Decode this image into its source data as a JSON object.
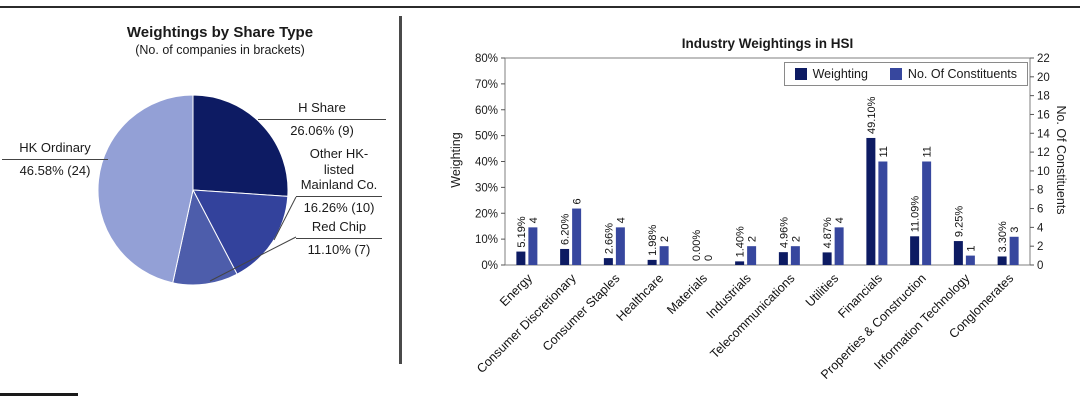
{
  "chart_data": [
    {
      "type": "pie",
      "title": "Weightings by Share Type",
      "subtitle": "(No. of companies in brackets)",
      "slices": [
        {
          "label": "H Share",
          "value": 26.06,
          "count": 9,
          "value_label": "26.06% (9)",
          "color": "#0d1b63"
        },
        {
          "label": "Other HK-listed Mainland Co.",
          "value": 16.26,
          "count": 10,
          "value_label": "16.26% (10)",
          "color": "#33429c"
        },
        {
          "label": "Red Chip",
          "value": 11.1,
          "count": 7,
          "value_label": "11.10% (7)",
          "color": "#4d5dab"
        },
        {
          "label": "HK Ordinary",
          "value": 46.58,
          "count": 24,
          "value_label": "46.58% (24)",
          "color": "#93a0d6"
        }
      ]
    },
    {
      "type": "bar",
      "title": "Industry Weightings in HSI",
      "legend": [
        "Weighting",
        "No. Of Constituents"
      ],
      "colors": {
        "weighting": "#0d1b63",
        "constituents": "#37479e"
      },
      "categories": [
        "Energy",
        "Consumer Discretionary",
        "Consumer Staples",
        "Healthcare",
        "Materials",
        "Industrials",
        "Telecommunications",
        "Utilities",
        "Financials",
        "Properties & Construction",
        "Information Technology",
        "Conglomerates"
      ],
      "series": [
        {
          "name": "Weighting",
          "axis": "left",
          "values": [
            5.19,
            6.2,
            2.66,
            1.98,
            0.0,
            1.4,
            4.96,
            4.87,
            49.1,
            11.09,
            9.25,
            3.3
          ],
          "labels": [
            "5.19%",
            "6.20%",
            "2.66%",
            "1.98%",
            "0.00%",
            "1.40%",
            "4.96%",
            "4.87%",
            "49.10%",
            "11.09%",
            "9.25%",
            "3.30%"
          ]
        },
        {
          "name": "No. Of Constituents",
          "axis": "right",
          "values": [
            4,
            6,
            4,
            2,
            0,
            2,
            2,
            4,
            11,
            11,
            1,
            3
          ],
          "labels": [
            "4",
            "6",
            "4",
            "2",
            "0",
            "2",
            "2",
            "4",
            "11",
            "11",
            "1",
            "3"
          ]
        }
      ],
      "ylabel_left": "Weighting",
      "ylabel_right": "No. Of Constituents",
      "ylim_left": [
        0,
        80
      ],
      "ylim_right": [
        0,
        22
      ],
      "yticks_left": [
        "0%",
        "10%",
        "20%",
        "30%",
        "40%",
        "50%",
        "60%",
        "70%",
        "80%"
      ],
      "yticks_right": [
        "0",
        "2",
        "4",
        "6",
        "8",
        "10",
        "12",
        "14",
        "16",
        "18",
        "20",
        "22"
      ],
      "grid": false,
      "legend_position": "top-right"
    }
  ]
}
